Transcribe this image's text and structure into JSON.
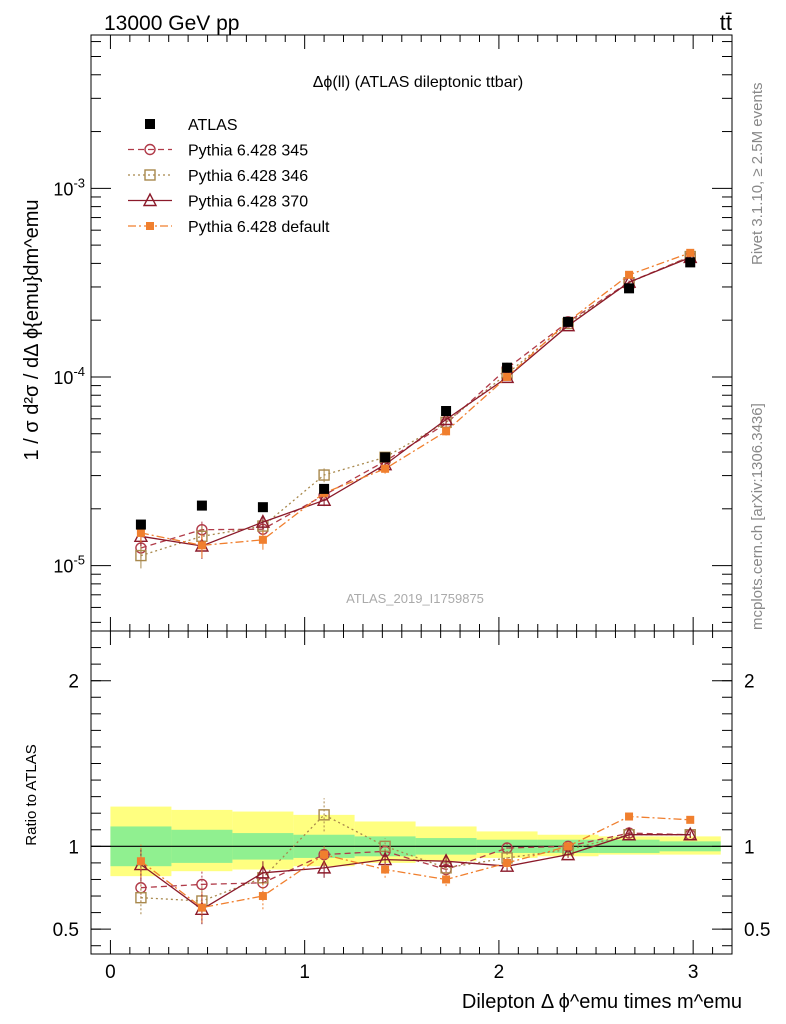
{
  "header": {
    "energy_label": "13000 GeV pp",
    "process_label": "tt̄"
  },
  "side_labels": {
    "rivet": "Rivet 3.1.10, ≥ 2.5M events",
    "mcplots": "mcplots.cern.ch [arXiv:1306.3436]"
  },
  "watermark": "ATLAS_2019_I1759875",
  "chart_data": {
    "type": "scatter",
    "title": "Δϕ(ll) (ATLAS dileptonic ttbar)",
    "xlabel": "Dilepton Δ ϕ^emu times m^emu",
    "ylabel": "1 / σ d²σ / dΔ ϕ{emu}dm^emu",
    "ratio_ylabel": "Ratio to ATLAS",
    "xlim": [
      -0.1,
      3.2
    ],
    "ylim_main": [
      4.5e-06,
      0.0065
    ],
    "yscale_main": "log",
    "ylim_ratio": [
      0.35,
      2.3
    ],
    "x_ticks": [
      0,
      1,
      2,
      3
    ],
    "y_ticks_main": [
      "10^-5",
      "10^-4",
      "10^-3"
    ],
    "y_ticks_ratio": [
      0.5,
      1,
      2
    ],
    "x": [
      0.157,
      0.471,
      0.785,
      1.1,
      1.414,
      1.728,
      2.042,
      2.356,
      2.67,
      2.985
    ],
    "bin_edges": [
      0,
      0.314,
      0.628,
      0.942,
      1.257,
      1.571,
      1.885,
      2.199,
      2.513,
      2.827,
      3.142
    ],
    "legend": [
      "ATLAS",
      "Pythia 6.428 345",
      "Pythia 6.428 346",
      "Pythia 6.428 370",
      "Pythia 6.428 default"
    ],
    "data_series": {
      "name": "ATLAS",
      "values": [
        1.65e-05,
        2.08e-05,
        2.04e-05,
        2.55e-05,
        3.75e-05,
        6.6e-05,
        0.000112,
        0.000196,
        0.000295,
        0.000405
      ],
      "ratio_band_inner": [
        [
          0.88,
          1.12
        ],
        [
          0.9,
          1.1
        ],
        [
          0.92,
          1.08
        ],
        [
          0.93,
          1.07
        ],
        [
          0.94,
          1.06
        ],
        [
          0.95,
          1.05
        ],
        [
          0.96,
          1.04
        ],
        [
          0.96,
          1.04
        ],
        [
          0.96,
          1.04
        ],
        [
          0.97,
          1.03
        ]
      ],
      "ratio_band_outer": [
        [
          0.82,
          1.24
        ],
        [
          0.85,
          1.22
        ],
        [
          0.86,
          1.21
        ],
        [
          0.88,
          1.19
        ],
        [
          0.9,
          1.15
        ],
        [
          0.91,
          1.12
        ],
        [
          0.93,
          1.09
        ],
        [
          0.94,
          1.07
        ],
        [
          0.95,
          1.06
        ],
        [
          0.95,
          1.06
        ]
      ]
    },
    "series": [
      {
        "name": "Pythia 6.428 345",
        "color": "#b03a48",
        "dash": "6,4",
        "marker": "circle-open",
        "values": [
          1.24e-05,
          1.55e-05,
          1.56e-05,
          2.36e-05,
          3.58e-05,
          5.65e-05,
          0.000111,
          0.000196,
          0.000318,
          0.000435
        ],
        "ratio": [
          0.75,
          0.77,
          0.78,
          0.95,
          0.97,
          0.86,
          0.99,
          1.0,
          1.08,
          1.07
        ],
        "ratio_err": [
          0.09,
          0.08,
          0.06,
          0.05,
          0.05,
          0.04,
          0.03,
          0.02,
          0.02,
          0.02
        ]
      },
      {
        "name": "Pythia 6.428 346",
        "color": "#a8884c",
        "dash": "2,3",
        "marker": "square-open",
        "values": [
          1.13e-05,
          1.43e-05,
          1.62e-05,
          3.02e-05,
          3.75e-05,
          5.75e-05,
          0.000104,
          0.000192,
          0.000316,
          0.000435
        ],
        "ratio": [
          0.69,
          0.67,
          0.81,
          1.19,
          1.0,
          0.87,
          0.93,
          0.98,
          1.07,
          1.07
        ],
        "ratio_err": [
          0.1,
          0.09,
          0.07,
          0.1,
          0.05,
          0.04,
          0.03,
          0.02,
          0.02,
          0.02
        ]
      },
      {
        "name": "Pythia 6.428 370",
        "color": "#8b1a2a",
        "dash": "",
        "marker": "triangle-open",
        "values": [
          1.43e-05,
          1.27e-05,
          1.7e-05,
          2.22e-05,
          3.43e-05,
          5.95e-05,
          9.95e-05,
          0.000187,
          0.000318,
          0.00043
        ],
        "ratio": [
          0.89,
          0.62,
          0.84,
          0.87,
          0.92,
          0.91,
          0.88,
          0.95,
          1.07,
          1.07
        ],
        "ratio_err": [
          0.1,
          0.09,
          0.07,
          0.06,
          0.05,
          0.04,
          0.03,
          0.02,
          0.02,
          0.02
        ]
      },
      {
        "name": "Pythia 6.428 default",
        "color": "#f07f2e",
        "dash": "8,3,2,3",
        "marker": "square-filled",
        "values": [
          1.49e-05,
          1.28e-05,
          1.37e-05,
          2.43e-05,
          3.26e-05,
          5.15e-05,
          0.0001,
          0.000197,
          0.000348,
          0.000455
        ],
        "ratio": [
          0.91,
          0.63,
          0.7,
          0.95,
          0.86,
          0.8,
          0.9,
          1.0,
          1.18,
          1.16
        ],
        "ratio_err": [
          0.1,
          0.09,
          0.08,
          0.06,
          0.05,
          0.04,
          0.03,
          0.02,
          0.02,
          0.02
        ]
      }
    ]
  }
}
